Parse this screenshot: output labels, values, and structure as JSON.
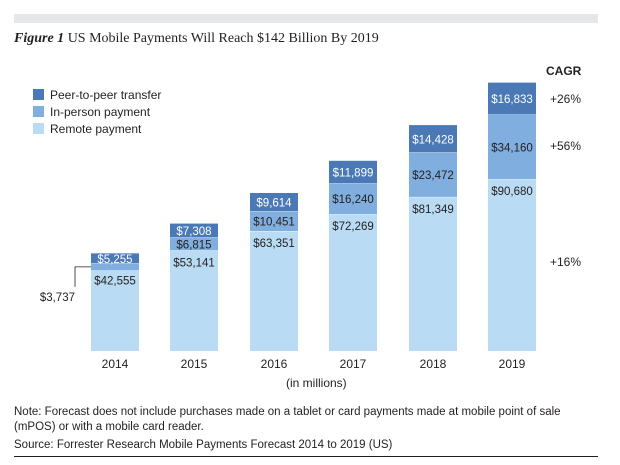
{
  "figure_label": "Figure 1",
  "title_text": "US Mobile Payments Will Reach $142 Billion By 2019",
  "colors": {
    "peer": "#4a79b6",
    "in_person": "#80aede",
    "remote": "#b9dcf4"
  },
  "legend": [
    {
      "name": "Peer-to-peer transfer",
      "color": "#4a79b6"
    },
    {
      "name": "In-person payment",
      "color": "#80aede"
    },
    {
      "name": "Remote payment",
      "color": "#b9dcf4"
    }
  ],
  "cagr": {
    "title": "CAGR",
    "peer": "+26%",
    "in_person": "+56%",
    "remote": "+16%"
  },
  "unit_label": "(in millions)",
  "note": "Note: Forecast does not include purchases made on a tablet or card payments made at mobile point of sale (mPOS) or with a mobile card reader.",
  "source": "Source: Forrester Research Mobile Payments Forecast 2014 to 2019 (US)",
  "chart_data": {
    "type": "bar",
    "stacked": true,
    "categories": [
      "2014",
      "2015",
      "2016",
      "2017",
      "2018",
      "2019"
    ],
    "series": [
      {
        "name": "Remote payment",
        "values": [
          42555,
          53141,
          63351,
          72269,
          81349,
          90680
        ],
        "labels": [
          "$42,555",
          "$53,141",
          "$63,351",
          "$72,269",
          "$81,349",
          "$90,680"
        ]
      },
      {
        "name": "In-person payment",
        "values": [
          3737,
          6815,
          10451,
          16240,
          23472,
          34160
        ],
        "labels": [
          "$3,737",
          "$6,815",
          "$10,451",
          "$16,240",
          "$23,472",
          "$34,160"
        ]
      },
      {
        "name": "Peer-to-peer transfer",
        "values": [
          5255,
          7308,
          9614,
          11899,
          14428,
          16833
        ],
        "labels": [
          "$5,255",
          "$7,308",
          "$9,614",
          "$11,899",
          "$14,428",
          "$16,833"
        ]
      }
    ],
    "ylim": [
      0,
      142000
    ]
  }
}
